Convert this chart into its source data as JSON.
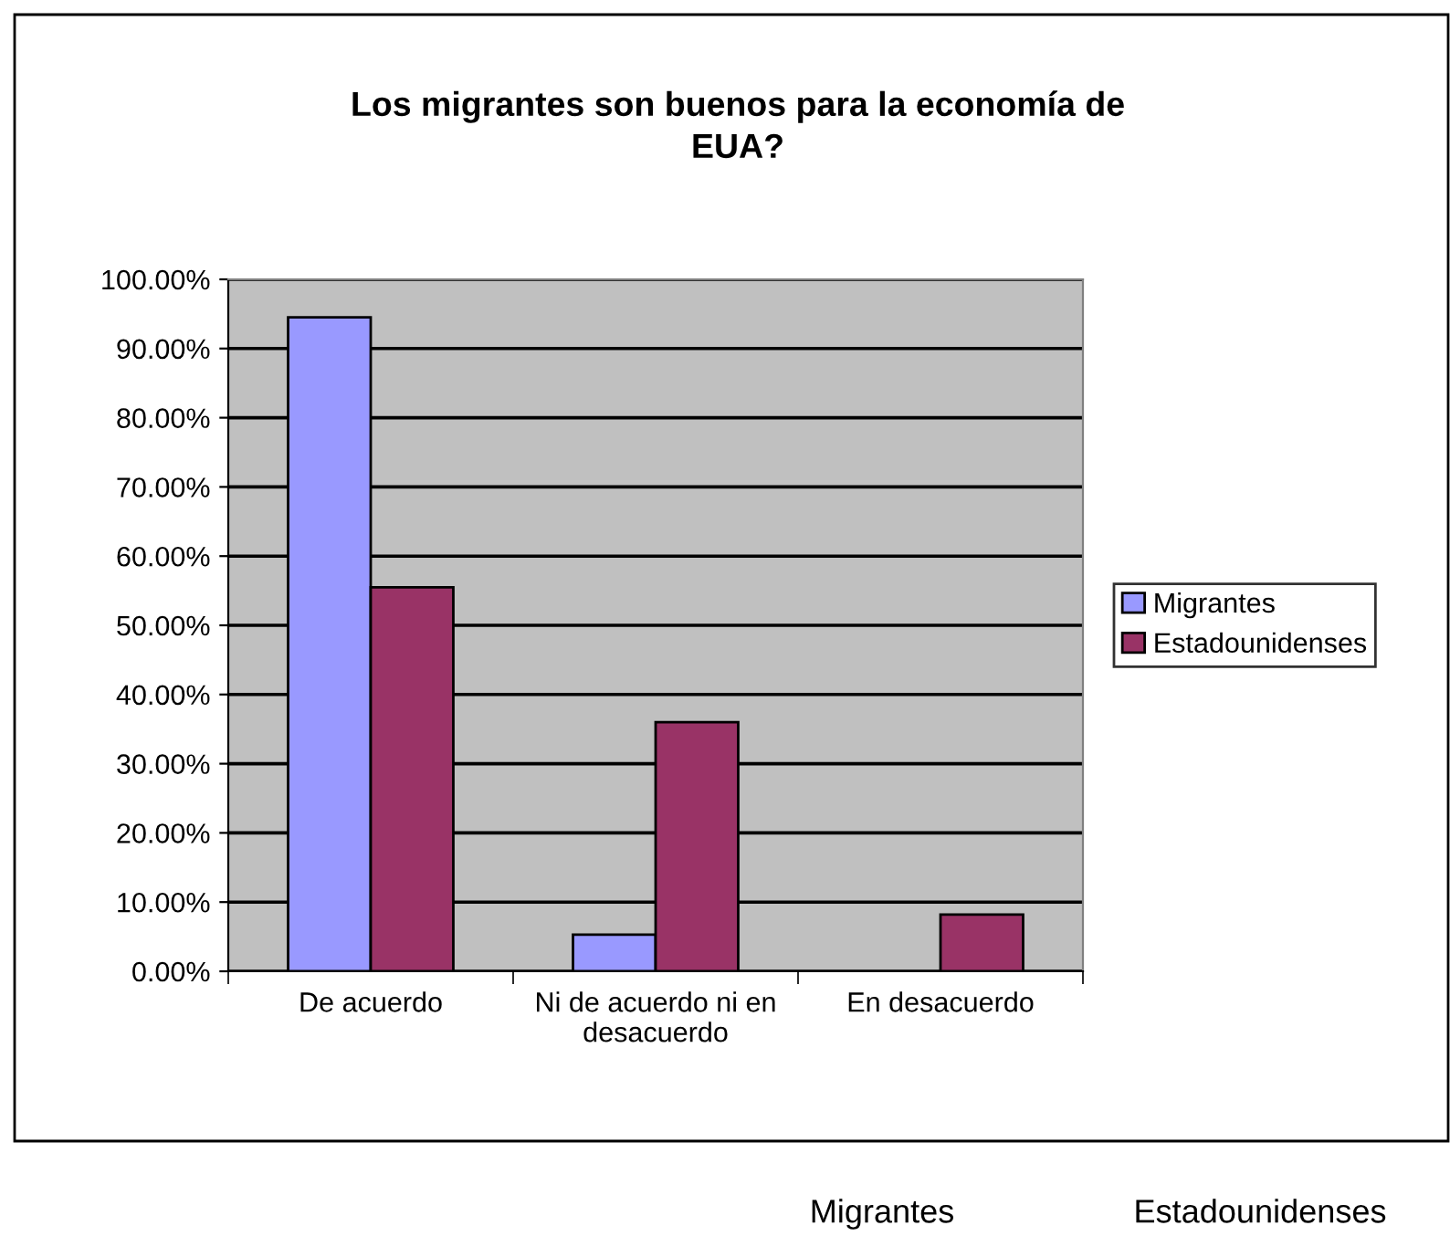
{
  "chart_data": {
    "type": "bar",
    "title": "Los migrantes son buenos para la economía de EUA?",
    "categories": [
      "De acuerdo",
      "Ni de acuerdo ni en desacuerdo",
      "En desacuerdo"
    ],
    "series": [
      {
        "name": "Migrantes",
        "color": "#9999ff",
        "values": [
          94.5,
          5.3,
          null
        ]
      },
      {
        "name": "Estadounidenses",
        "color": "#993366",
        "values": [
          55.5,
          36,
          8.2
        ]
      }
    ],
    "ylim": [
      0,
      100
    ],
    "yticks": [
      {
        "value": 0,
        "label": "0.00%"
      },
      {
        "value": 10,
        "label": "10.00%"
      },
      {
        "value": 20,
        "label": "20.00%"
      },
      {
        "value": 30,
        "label": "30.00%"
      },
      {
        "value": 40,
        "label": "40.00%"
      },
      {
        "value": 50,
        "label": "50.00%"
      },
      {
        "value": 60,
        "label": "60.00%"
      },
      {
        "value": 70,
        "label": "70.00%"
      },
      {
        "value": 80,
        "label": "80.00%"
      },
      {
        "value": 90,
        "label": "90.00%"
      },
      {
        "value": 100,
        "label": "100.00%"
      }
    ],
    "grid": "y",
    "legend": "right",
    "annotations": [
      "Migrantes",
      "Estadounidenses"
    ]
  }
}
